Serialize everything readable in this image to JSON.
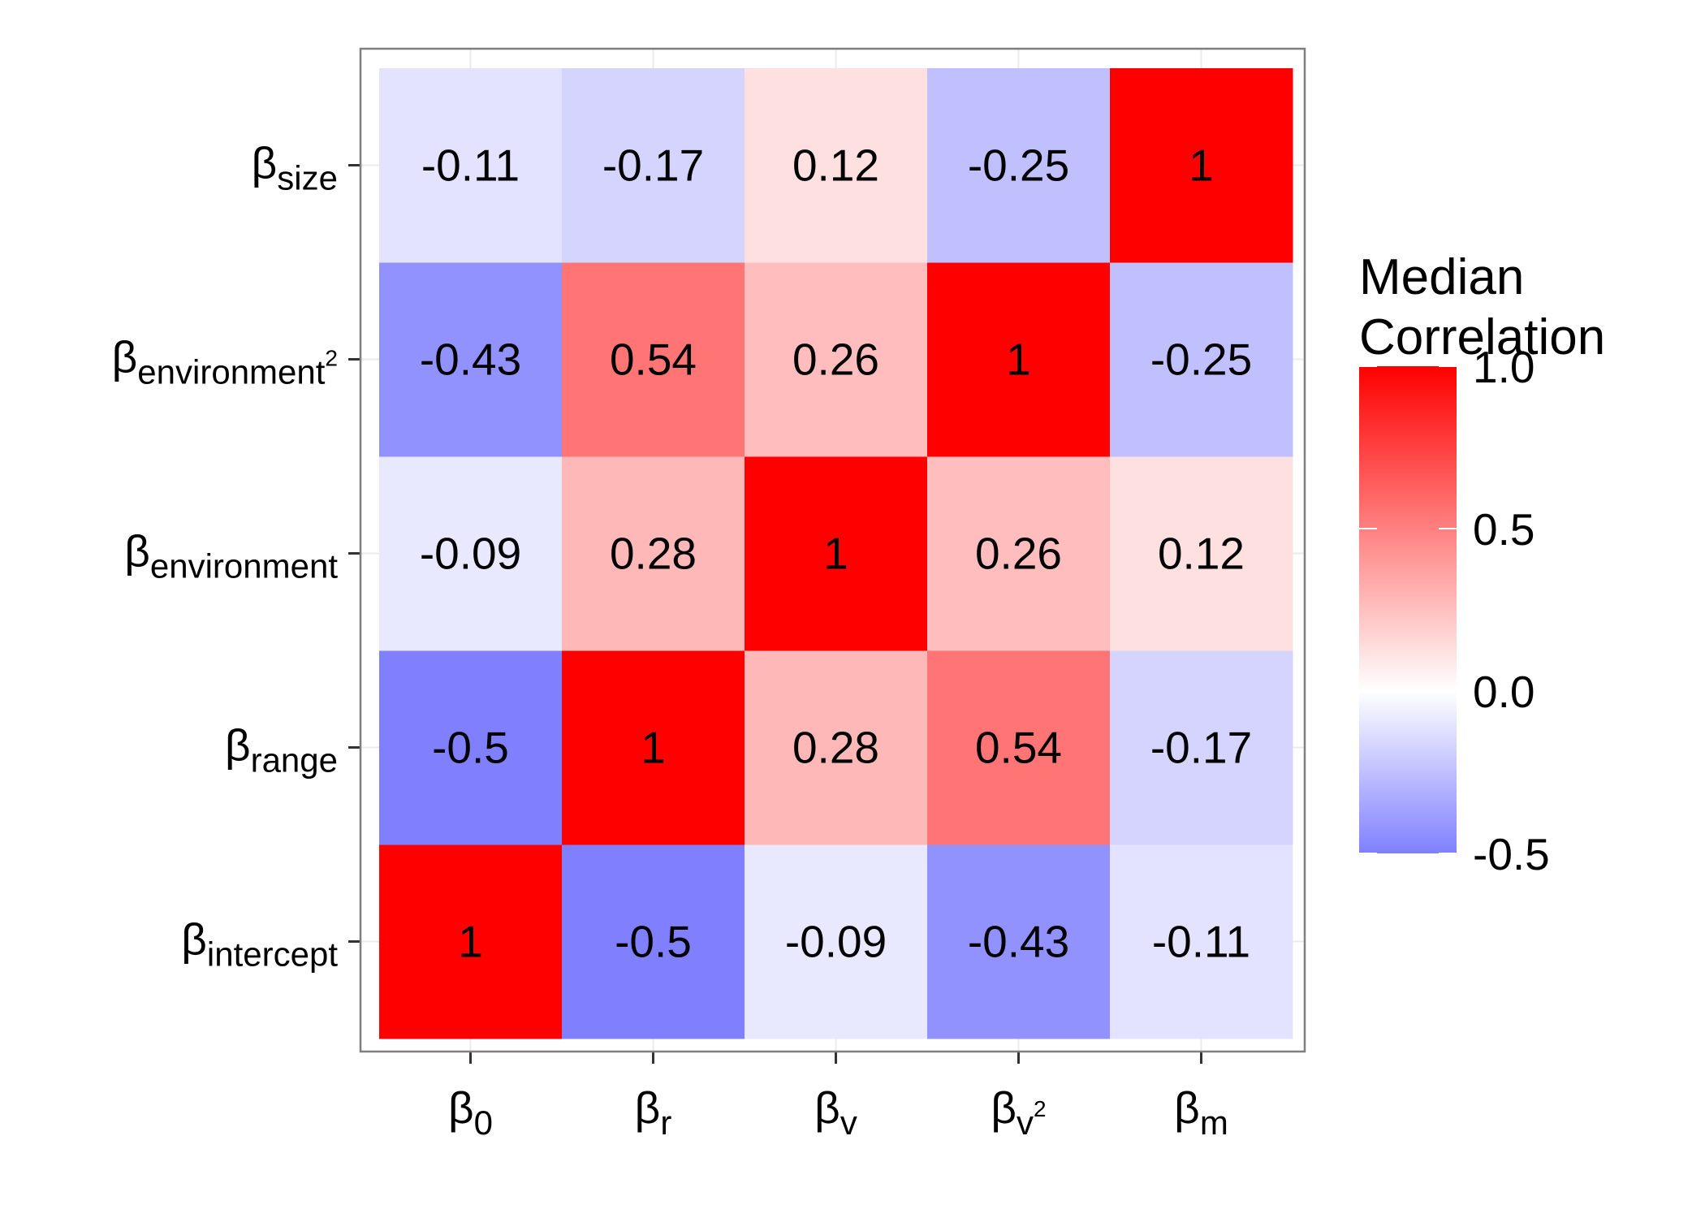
{
  "chart_data": {
    "type": "heatmap",
    "x_categories": [
      {
        "base": "β",
        "sub": "0",
        "sup": ""
      },
      {
        "base": "β",
        "sub": "r",
        "sup": ""
      },
      {
        "base": "β",
        "sub": "v",
        "sup": ""
      },
      {
        "base": "β",
        "sub": "v",
        "sup": "2"
      },
      {
        "base": "β",
        "sub": "m",
        "sup": ""
      }
    ],
    "y_categories": [
      {
        "base": "β",
        "sub": "intercept",
        "sup": ""
      },
      {
        "base": "β",
        "sub": "range",
        "sup": ""
      },
      {
        "base": "β",
        "sub": "environment",
        "sup": ""
      },
      {
        "base": "β",
        "sub": "environment",
        "sup": "2"
      },
      {
        "base": "β",
        "sub": "size",
        "sup": ""
      }
    ],
    "values": [
      [
        1,
        -0.5,
        -0.09,
        -0.43,
        -0.11
      ],
      [
        -0.5,
        1,
        0.28,
        0.54,
        -0.17
      ],
      [
        -0.09,
        0.28,
        1,
        0.26,
        0.12
      ],
      [
        -0.43,
        0.54,
        0.26,
        1,
        -0.25
      ],
      [
        -0.11,
        -0.17,
        0.12,
        -0.25,
        1
      ]
    ],
    "cell_labels": [
      [
        "1",
        "-0.5",
        "-0.09",
        "-0.43",
        "-0.11"
      ],
      [
        "-0.5",
        "1",
        "0.28",
        "0.54",
        "-0.17"
      ],
      [
        "-0.09",
        "0.28",
        "1",
        "0.26",
        "0.12"
      ],
      [
        "-0.43",
        "0.54",
        "0.26",
        "1",
        "-0.25"
      ],
      [
        "-0.11",
        "-0.17",
        "0.12",
        "-0.25",
        "1"
      ]
    ],
    "legend": {
      "title_lines": [
        "Median",
        "Correlation"
      ],
      "ticks": [
        {
          "value": 1.0,
          "label": "1.0"
        },
        {
          "value": 0.5,
          "label": "0.5"
        },
        {
          "value": 0.0,
          "label": "0.0"
        },
        {
          "value": -0.5,
          "label": "-0.5"
        }
      ],
      "range": [
        -0.5,
        1.0
      ],
      "placement": "right"
    },
    "colors": {
      "low": "#8080ff",
      "mid": "#ffffff",
      "high": "#ff0000",
      "panel_border": "#7f7f7f",
      "grid": "#ebebeb"
    },
    "title": "",
    "xlabel": "",
    "ylabel": ""
  }
}
